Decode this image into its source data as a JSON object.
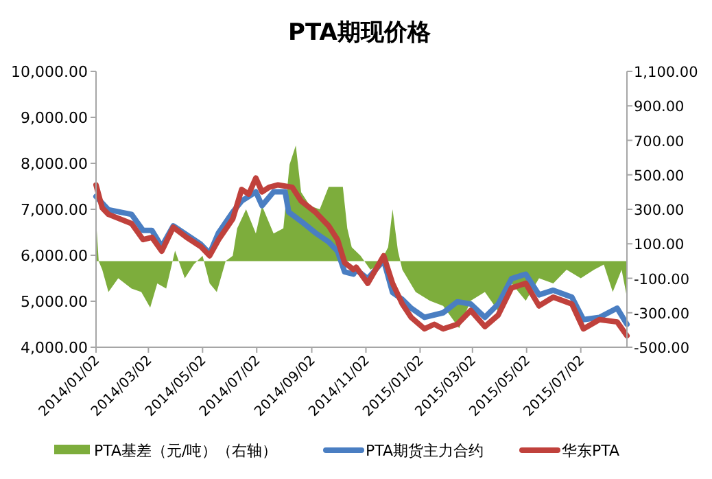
{
  "chart_data": {
    "type": "line",
    "title": "PTA期现价格",
    "xlim": [
      "2014-01-02",
      "2015-08-23"
    ],
    "xticks": [
      {
        "value": "2014-01-02",
        "label": "2014/01/02"
      },
      {
        "value": "2014-03-02",
        "label": "2014/03/02"
      },
      {
        "value": "2014-05-02",
        "label": "2014/05/02"
      },
      {
        "value": "2014-07-02",
        "label": "2014/07/02"
      },
      {
        "value": "2014-09-02",
        "label": "2014/09/02"
      },
      {
        "value": "2014-11-02",
        "label": "2014/11/02"
      },
      {
        "value": "2015-01-02",
        "label": "2015/01/02"
      },
      {
        "value": "2015-03-02",
        "label": "2015/03/02"
      },
      {
        "value": "2015-05-02",
        "label": "2015/05/02"
      },
      {
        "value": "2015-07-02",
        "label": "2015/07/02"
      }
    ],
    "ylim": [
      4000,
      10000
    ],
    "yticks": [
      {
        "value": 4000,
        "label": "4,000.00"
      },
      {
        "value": 5000,
        "label": "5,000.00"
      },
      {
        "value": 6000,
        "label": "6,000.00"
      },
      {
        "value": 7000,
        "label": "7,000.00"
      },
      {
        "value": 8000,
        "label": "8,000.00"
      },
      {
        "value": 9000,
        "label": "9,000.00"
      },
      {
        "value": 10000,
        "label": "10,000.00"
      }
    ],
    "y2lim": [
      -500,
      1100
    ],
    "y2ticks": [
      {
        "value": -500,
        "label": "-500.00"
      },
      {
        "value": -300,
        "label": "-300.00"
      },
      {
        "value": -100,
        "label": "-100.00"
      },
      {
        "value": 100,
        "label": "100.00"
      },
      {
        "value": 300,
        "label": "300.00"
      },
      {
        "value": 500,
        "label": "500.00"
      },
      {
        "value": 700,
        "label": "700.00"
      },
      {
        "value": 900,
        "label": "900.00"
      },
      {
        "value": 1100,
        "label": "1,100.00"
      }
    ],
    "legend": "bottom",
    "series": [
      {
        "name": "PTA基差（元/吨）（右轴）",
        "type": "area",
        "axis": "y2",
        "color": "#7dad3c",
        "x": [
          "2014-01-02",
          "2014-01-05",
          "2014-01-09",
          "2014-01-16",
          "2014-01-27",
          "2014-02-11",
          "2014-02-22",
          "2014-03-04",
          "2014-03-12",
          "2014-03-22",
          "2014-04-01",
          "2014-04-12",
          "2014-04-22",
          "2014-05-02",
          "2014-05-10",
          "2014-05-18",
          "2014-05-28",
          "2014-06-05",
          "2014-06-10",
          "2014-06-20",
          "2014-07-01",
          "2014-07-08",
          "2014-07-21",
          "2014-08-01",
          "2014-08-08",
          "2014-08-15",
          "2014-08-21",
          "2014-08-31",
          "2014-09-11",
          "2014-09-21",
          "2014-10-07",
          "2014-10-12",
          "2014-10-17",
          "2014-10-27",
          "2014-11-07",
          "2014-11-17",
          "2014-11-27",
          "2014-12-02",
          "2014-12-08",
          "2014-12-13",
          "2014-12-28",
          "2015-01-13",
          "2015-01-28",
          "2015-02-15",
          "2015-02-28",
          "2015-03-16",
          "2015-03-31",
          "2015-04-15",
          "2015-05-01",
          "2015-05-16",
          "2015-06-01",
          "2015-06-16",
          "2015-07-02",
          "2015-07-17",
          "2015-07-28",
          "2015-08-07",
          "2015-08-17",
          "2015-08-23"
        ],
        "values": [
          240,
          0,
          -50,
          -180,
          -100,
          -160,
          -180,
          -270,
          -130,
          -160,
          60,
          -100,
          -20,
          30,
          -130,
          -180,
          0,
          30,
          190,
          300,
          160,
          320,
          160,
          190,
          560,
          670,
          400,
          320,
          300,
          430,
          430,
          190,
          80,
          30,
          -50,
          -20,
          80,
          300,
          60,
          -50,
          -180,
          -230,
          -260,
          -390,
          -230,
          -180,
          -290,
          -130,
          -230,
          -100,
          -130,
          -50,
          -100,
          -50,
          -20,
          -180,
          -50,
          -210
        ]
      },
      {
        "name": "PTA期货主力合约",
        "color": "#4a7ec2",
        "x": [
          "2014-01-02",
          "2014-01-16",
          "2014-02-11",
          "2014-02-24",
          "2014-03-06",
          "2014-03-17",
          "2014-03-30",
          "2014-04-30",
          "2014-05-10",
          "2014-05-20",
          "2014-06-05",
          "2014-06-15",
          "2014-07-01",
          "2014-07-08",
          "2014-07-21",
          "2014-08-03",
          "2014-08-07",
          "2014-08-21",
          "2014-09-06",
          "2014-09-21",
          "2014-10-01",
          "2014-10-09",
          "2014-10-19",
          "2014-10-22",
          "2014-11-04",
          "2014-11-22",
          "2014-12-02",
          "2014-12-13",
          "2014-12-23",
          "2015-01-07",
          "2015-01-28",
          "2015-02-13",
          "2015-02-28",
          "2015-03-16",
          "2015-03-31",
          "2015-04-15",
          "2015-05-01",
          "2015-05-16",
          "2015-06-01",
          "2015-06-22",
          "2015-07-05",
          "2015-07-23",
          "2015-08-12",
          "2015-08-23"
        ],
        "values": [
          7280,
          6990,
          6890,
          6540,
          6540,
          6190,
          6640,
          6240,
          6040,
          6490,
          6940,
          7180,
          7380,
          7080,
          7380,
          7380,
          6940,
          6740,
          6490,
          6290,
          6090,
          5640,
          5590,
          5690,
          5490,
          5890,
          5190,
          5040,
          4850,
          4650,
          4750,
          4990,
          4940,
          4650,
          4940,
          5490,
          5590,
          5140,
          5240,
          5090,
          4600,
          4650,
          4850,
          4500
        ]
      },
      {
        "name": "华东PTA",
        "color": "#c0413c",
        "x": [
          "2014-01-02",
          "2014-01-09",
          "2014-01-16",
          "2014-02-11",
          "2014-02-24",
          "2014-03-06",
          "2014-03-17",
          "2014-03-30",
          "2014-04-14",
          "2014-04-30",
          "2014-05-10",
          "2014-05-20",
          "2014-06-05",
          "2014-06-15",
          "2014-06-23",
          "2014-07-01",
          "2014-07-08",
          "2014-07-16",
          "2014-07-26",
          "2014-08-11",
          "2014-08-21",
          "2014-09-06",
          "2014-09-21",
          "2014-10-01",
          "2014-10-09",
          "2014-10-19",
          "2014-10-22",
          "2014-11-04",
          "2014-11-22",
          "2014-12-02",
          "2014-12-13",
          "2014-12-23",
          "2015-01-07",
          "2015-01-18",
          "2015-01-28",
          "2015-02-13",
          "2015-02-28",
          "2015-03-16",
          "2015-03-31",
          "2015-04-15",
          "2015-05-01",
          "2015-05-16",
          "2015-06-01",
          "2015-06-22",
          "2015-07-05",
          "2015-07-23",
          "2015-08-12",
          "2015-08-23"
        ],
        "values": [
          7530,
          7030,
          6890,
          6690,
          6340,
          6390,
          6090,
          6610,
          6390,
          6190,
          5990,
          6340,
          6790,
          7430,
          7330,
          7680,
          7380,
          7480,
          7530,
          7480,
          7180,
          6940,
          6640,
          6340,
          5840,
          5690,
          5740,
          5390,
          5990,
          5390,
          4940,
          4650,
          4400,
          4500,
          4400,
          4500,
          4800,
          4450,
          4700,
          5290,
          5390,
          4900,
          5090,
          4940,
          4400,
          4600,
          4550,
          4250
        ]
      }
    ]
  }
}
